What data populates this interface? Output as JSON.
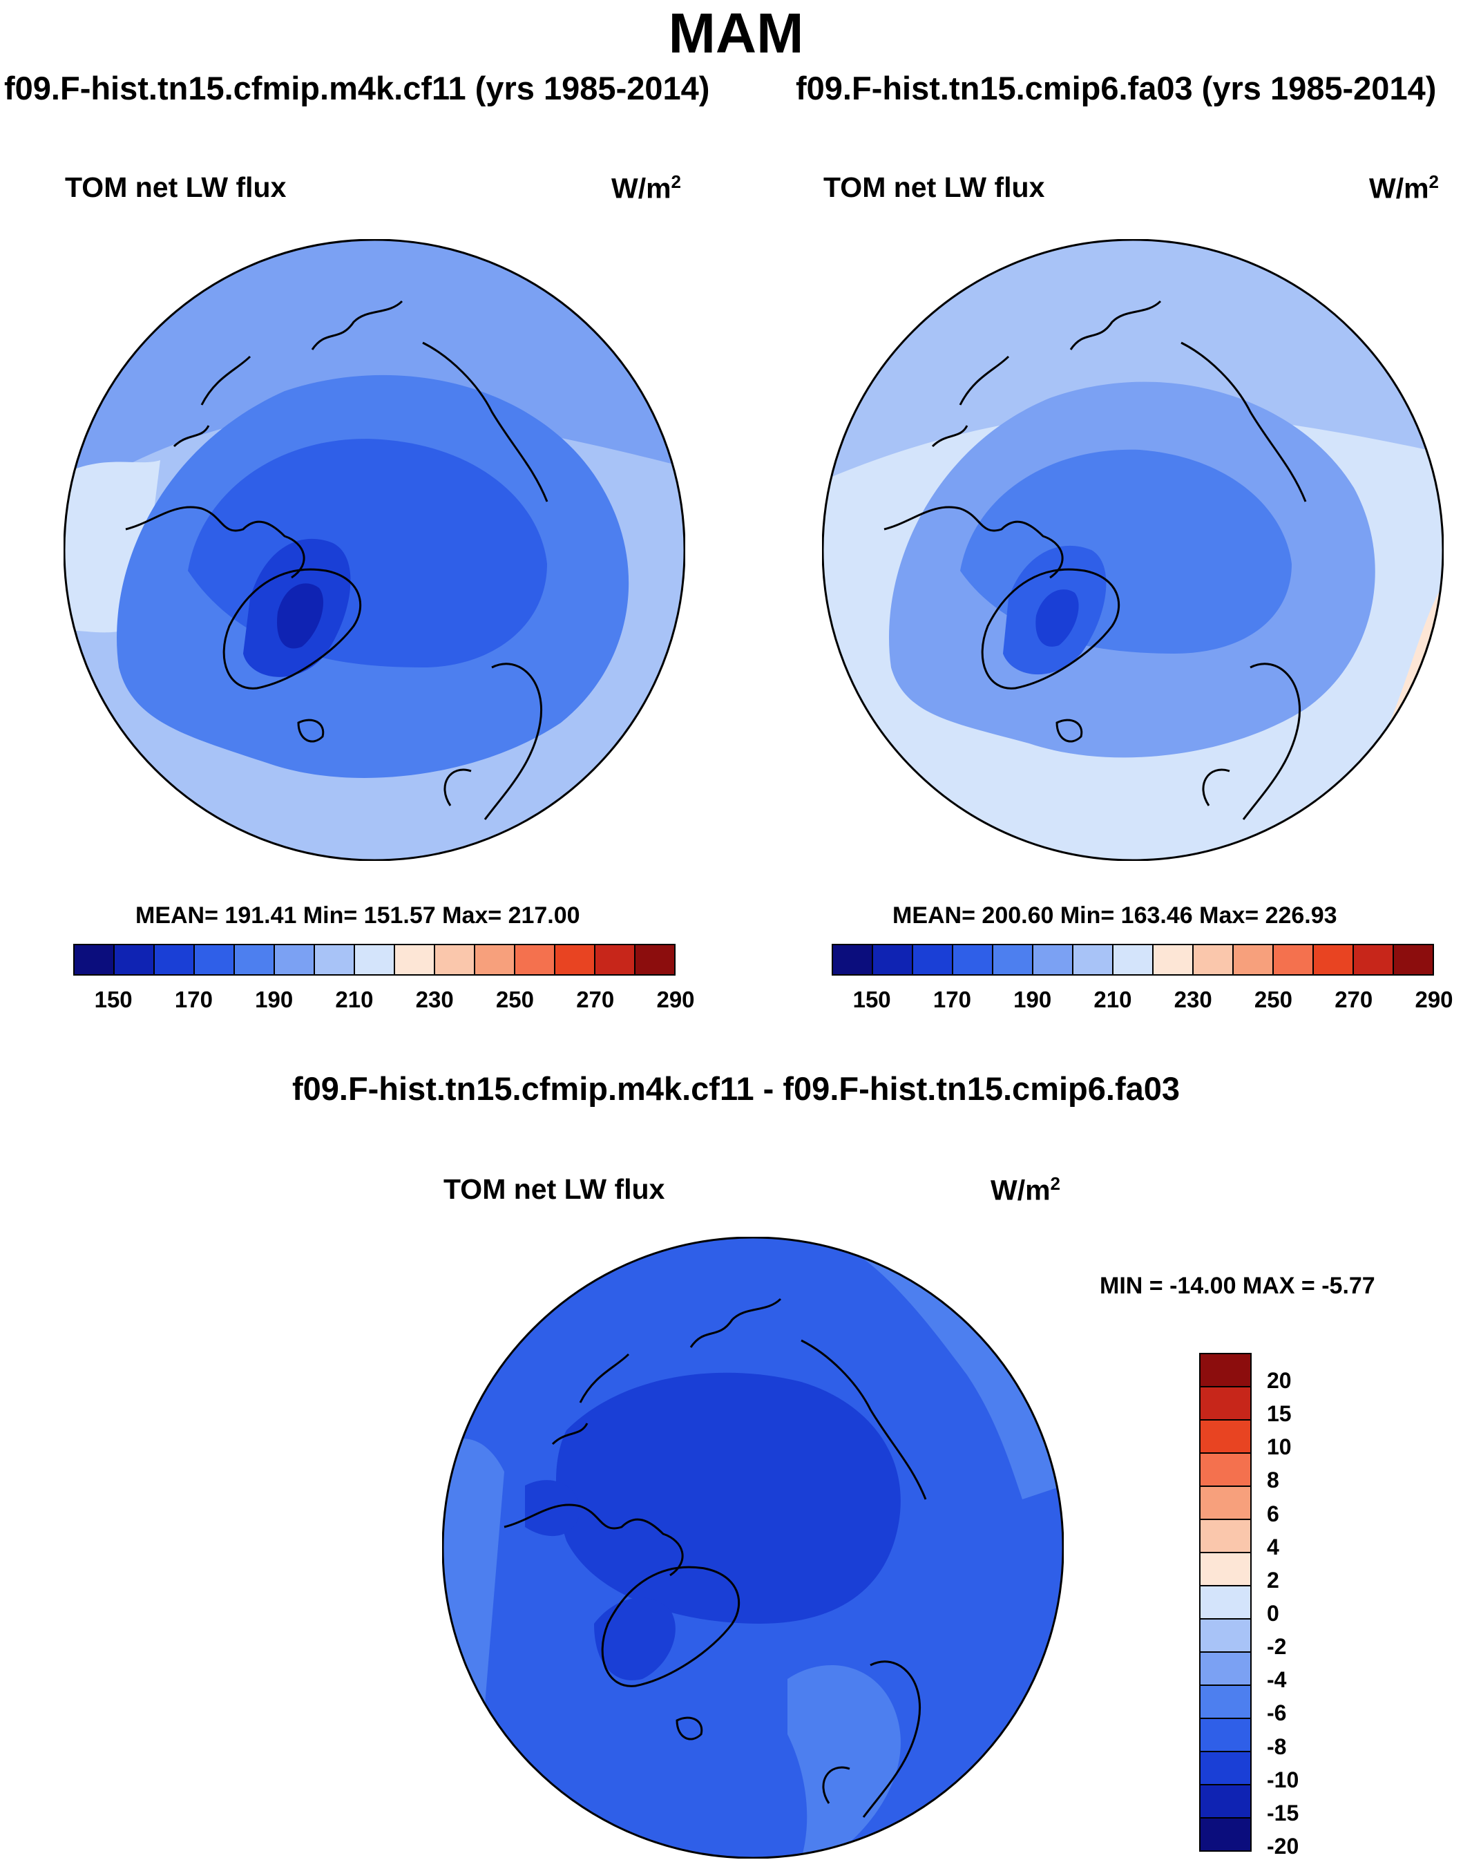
{
  "season": "MAM",
  "panels": [
    {
      "run_title": "f09.F-hist.tn15.cfmip.m4k.cf11 (yrs 1985-2014)",
      "variable": "TOM net LW flux",
      "units": "W/m",
      "units_sup": "2",
      "stats": "MEAN= 191.41  Min= 151.57  Max= 217.00"
    },
    {
      "run_title": "f09.F-hist.tn15.cmip6.fa03 (yrs 1985-2014)",
      "variable": "TOM net LW flux",
      "units": "W/m",
      "units_sup": "2",
      "stats": "MEAN= 200.60  Min= 163.46  Max= 226.93"
    }
  ],
  "diff": {
    "title": "f09.F-hist.tn15.cfmip.m4k.cf11 - f09.F-hist.tn15.cmip6.fa03",
    "variable": "TOM net LW flux",
    "units": "W/m",
    "units_sup": "2",
    "stats": "MIN = -14.00 MAX =  -5.77"
  },
  "abs_colorbar": {
    "colors": [
      "#0b0d7d",
      "#0f23b3",
      "#1a3fd6",
      "#2f5fe8",
      "#4d7fef",
      "#7ba1f3",
      "#a8c3f7",
      "#d4e4fb",
      "#fde6d6",
      "#fac7ac",
      "#f7a07c",
      "#f4714e",
      "#e84422",
      "#c7261a",
      "#8c0d0d"
    ],
    "labels": [
      "150",
      "170",
      "190",
      "210",
      "230",
      "250",
      "270",
      "290"
    ]
  },
  "diff_colorbar": {
    "colors": [
      "#8c0d0d",
      "#c7261a",
      "#e84422",
      "#f4714e",
      "#f7a07c",
      "#fac7ac",
      "#fde6d6",
      "#d4e4fb",
      "#a8c3f7",
      "#7ba1f3",
      "#4d7fef",
      "#2f5fe8",
      "#1a3fd6",
      "#0f23b3",
      "#0b0d7d"
    ],
    "labels": [
      "20",
      "15",
      "10",
      "8",
      "6",
      "4",
      "2",
      "0",
      "-2",
      "-4",
      "-6",
      "-8",
      "-10",
      "-15",
      "-20"
    ]
  }
}
